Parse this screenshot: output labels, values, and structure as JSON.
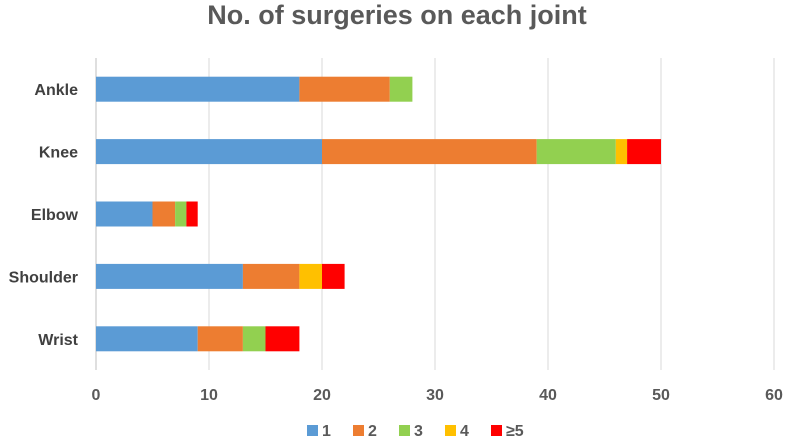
{
  "chart_data": {
    "type": "bar",
    "orientation": "horizontal",
    "stacked": true,
    "title": "No. of surgeries on each joint",
    "xlabel": "",
    "ylabel": "",
    "categories": [
      "Ankle",
      "Knee",
      "Elbow",
      "Shoulder",
      "Wrist"
    ],
    "xlim": [
      0,
      60
    ],
    "xticks": [
      0,
      10,
      20,
      30,
      40,
      50,
      60
    ],
    "grid": true,
    "legend_position": "bottom",
    "series": [
      {
        "name": "1",
        "color": "#5b9bd5",
        "values": [
          18,
          20,
          5,
          13,
          9
        ]
      },
      {
        "name": "2",
        "color": "#ed7d31",
        "values": [
          8,
          19,
          2,
          5,
          4
        ]
      },
      {
        "name": "3",
        "color": "#92d050",
        "values": [
          2,
          7,
          1,
          0,
          2
        ]
      },
      {
        "name": "4",
        "color": "#ffc000",
        "values": [
          0,
          1,
          0,
          2,
          0
        ]
      },
      {
        "name": "≥5",
        "color": "#ff0000",
        "values": [
          0,
          3,
          1,
          2,
          3
        ]
      }
    ]
  }
}
